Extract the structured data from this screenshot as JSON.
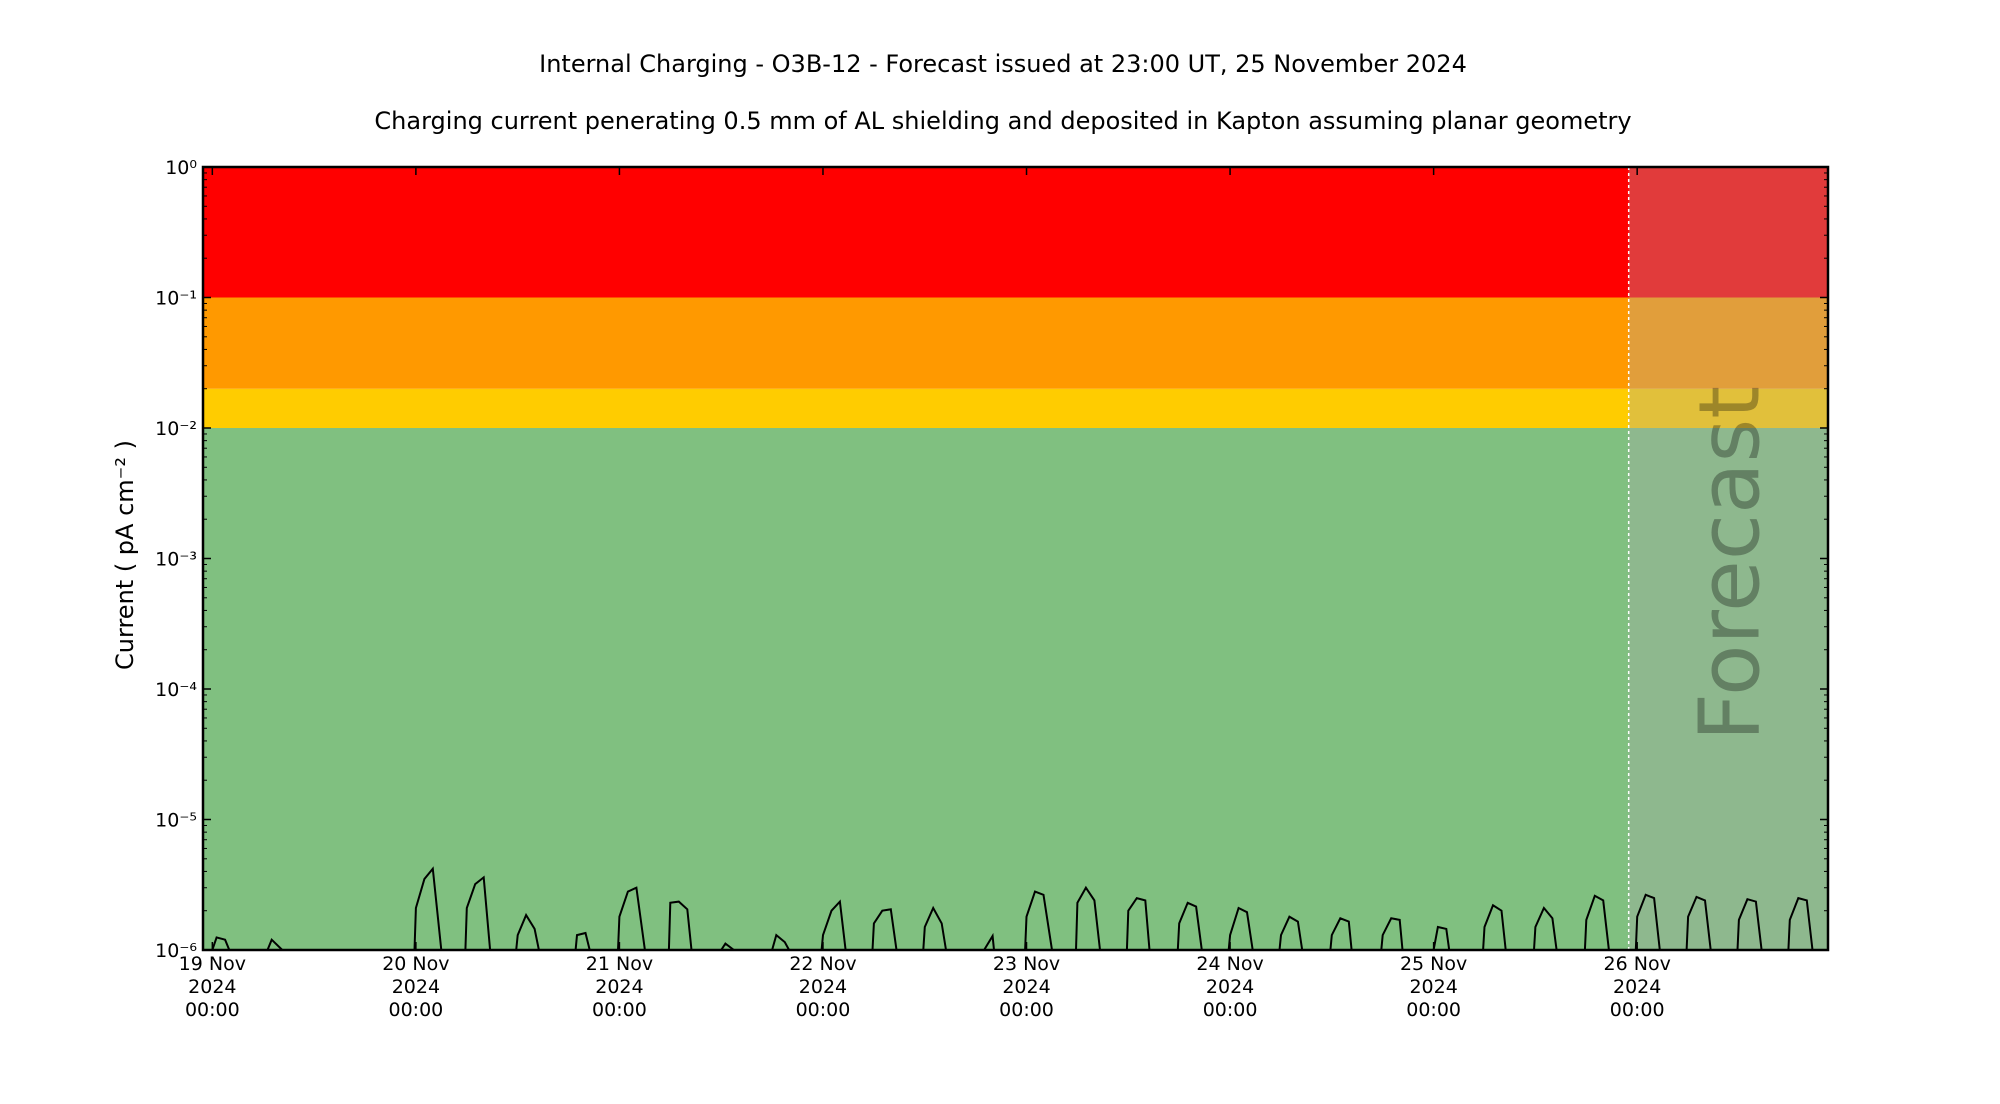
{
  "chart_data": {
    "type": "line",
    "title": "Internal Charging - O3B-12 - Forecast issued at 23:00 UT, 25 November 2024",
    "subtitle": "Charging current penerating 0.5 mm of AL shielding and deposited in Kapton assuming planar geometry",
    "xlabel": "",
    "ylabel": "Current ( pA cm⁻² )",
    "y_scale": "log",
    "ylim": [
      1e-06,
      1
    ],
    "xlim": [
      "2024-11-18T22:54",
      "2024-11-26T22:30"
    ],
    "grid": false,
    "y_ticks": [
      {
        "value": 1e-06,
        "label": "10⁻⁶"
      },
      {
        "value": 1e-05,
        "label": "10⁻⁵"
      },
      {
        "value": 0.0001,
        "label": "10⁻⁴"
      },
      {
        "value": 0.001,
        "label": "10⁻³"
      },
      {
        "value": 0.01,
        "label": "10⁻²"
      },
      {
        "value": 0.1,
        "label": "10⁻¹"
      },
      {
        "value": 1,
        "label": "10⁰"
      }
    ],
    "x_ticks": [
      {
        "time": "2024-11-19T00:00",
        "lines": [
          "19 Nov",
          "2024",
          "00:00"
        ]
      },
      {
        "time": "2024-11-20T00:00",
        "lines": [
          "20 Nov",
          "2024",
          "00:00"
        ]
      },
      {
        "time": "2024-11-21T00:00",
        "lines": [
          "21 Nov",
          "2024",
          "00:00"
        ]
      },
      {
        "time": "2024-11-22T00:00",
        "lines": [
          "22 Nov",
          "2024",
          "00:00"
        ]
      },
      {
        "time": "2024-11-23T00:00",
        "lines": [
          "23 Nov",
          "2024",
          "00:00"
        ]
      },
      {
        "time": "2024-11-24T00:00",
        "lines": [
          "24 Nov",
          "2024",
          "00:00"
        ]
      },
      {
        "time": "2024-11-25T00:00",
        "lines": [
          "25 Nov",
          "2024",
          "00:00"
        ]
      },
      {
        "time": "2024-11-26T00:00",
        "lines": [
          "26 Nov",
          "2024",
          "00:00"
        ]
      }
    ],
    "bands": [
      {
        "from": 1e-06,
        "to": 0.01,
        "color": "#80c080"
      },
      {
        "from": 0.01,
        "to": 0.02,
        "color": "#ffcc00"
      },
      {
        "from": 0.02,
        "to": 0.1,
        "color": "#ff9900"
      },
      {
        "from": 0.1,
        "to": 1,
        "color": "#ff0000"
      }
    ],
    "forecast_region": {
      "start": "2024-11-25T23:00",
      "end": "2024-11-26T22:30",
      "label": "Forecast",
      "overlay_color": "#aaaaaa",
      "overlay_opacity": 0.35
    },
    "series": [
      {
        "color": "#000000",
        "points": [
          [
            "2024-11-19T00:00",
            1e-06
          ],
          [
            "2024-11-19T00:30",
            1.25e-06
          ],
          [
            "2024-11-19T01:30",
            1.2e-06
          ],
          [
            "2024-11-19T02:00",
            1e-06
          ],
          [
            "2024-11-19T06:30",
            1e-06
          ],
          [
            "2024-11-19T07:00",
            1.2e-06
          ],
          [
            "2024-11-19T08:15",
            1e-06
          ],
          [
            "2024-11-19T23:50",
            1e-06
          ],
          [
            "2024-11-20T00:00",
            2.1e-06
          ],
          [
            "2024-11-20T01:00",
            3.5e-06
          ],
          [
            "2024-11-20T02:00",
            4.2e-06
          ],
          [
            "2024-11-20T03:00",
            1e-06
          ],
          [
            "2024-11-20T05:50",
            1e-06
          ],
          [
            "2024-11-20T06:00",
            2.1e-06
          ],
          [
            "2024-11-20T07:00",
            3.2e-06
          ],
          [
            "2024-11-20T08:00",
            3.6e-06
          ],
          [
            "2024-11-20T08:45",
            1e-06
          ],
          [
            "2024-11-20T11:50",
            1e-06
          ],
          [
            "2024-11-20T12:00",
            1.3e-06
          ],
          [
            "2024-11-20T13:00",
            1.85e-06
          ],
          [
            "2024-11-20T14:00",
            1.45e-06
          ],
          [
            "2024-11-20T14:30",
            1e-06
          ],
          [
            "2024-11-20T18:50",
            1e-06
          ],
          [
            "2024-11-20T19:00",
            1.3e-06
          ],
          [
            "2024-11-20T20:00",
            1.35e-06
          ],
          [
            "2024-11-20T20:30",
            1e-06
          ],
          [
            "2024-11-20T23:50",
            1e-06
          ],
          [
            "2024-11-21T00:00",
            1.8e-06
          ],
          [
            "2024-11-21T01:00",
            2.8e-06
          ],
          [
            "2024-11-21T02:00",
            3e-06
          ],
          [
            "2024-11-21T03:00",
            1e-06
          ],
          [
            "2024-11-21T05:50",
            1e-06
          ],
          [
            "2024-11-21T06:00",
            2.3e-06
          ],
          [
            "2024-11-21T07:00",
            2.35e-06
          ],
          [
            "2024-11-21T08:00",
            2.05e-06
          ],
          [
            "2024-11-21T08:30",
            1e-06
          ],
          [
            "2024-11-21T12:00",
            1e-06
          ],
          [
            "2024-11-21T12:30",
            1.12e-06
          ],
          [
            "2024-11-21T13:30",
            1e-06
          ],
          [
            "2024-11-21T18:00",
            1e-06
          ],
          [
            "2024-11-21T18:30",
            1.3e-06
          ],
          [
            "2024-11-21T19:30",
            1.15e-06
          ],
          [
            "2024-11-21T20:00",
            1e-06
          ],
          [
            "2024-11-21T23:50",
            1e-06
          ],
          [
            "2024-11-22T00:00",
            1.3e-06
          ],
          [
            "2024-11-22T01:00",
            2e-06
          ],
          [
            "2024-11-22T02:00",
            2.35e-06
          ],
          [
            "2024-11-22T02:40",
            1e-06
          ],
          [
            "2024-11-22T05:50",
            1e-06
          ],
          [
            "2024-11-22T06:00",
            1.6e-06
          ],
          [
            "2024-11-22T07:00",
            2e-06
          ],
          [
            "2024-11-22T08:00",
            2.05e-06
          ],
          [
            "2024-11-22T08:40",
            1e-06
          ],
          [
            "2024-11-22T11:50",
            1e-06
          ],
          [
            "2024-11-22T12:00",
            1.5e-06
          ],
          [
            "2024-11-22T13:00",
            2.1e-06
          ],
          [
            "2024-11-22T14:00",
            1.6e-06
          ],
          [
            "2024-11-22T14:30",
            1e-06
          ],
          [
            "2024-11-22T19:00",
            1e-06
          ],
          [
            "2024-11-22T20:00",
            1.28e-06
          ],
          [
            "2024-11-22T20:10",
            1e-06
          ],
          [
            "2024-11-22T23:50",
            1e-06
          ],
          [
            "2024-11-23T00:00",
            1.8e-06
          ],
          [
            "2024-11-23T01:00",
            2.8e-06
          ],
          [
            "2024-11-23T02:00",
            2.65e-06
          ],
          [
            "2024-11-23T03:00",
            1e-06
          ],
          [
            "2024-11-23T05:50",
            1e-06
          ],
          [
            "2024-11-23T06:00",
            2.3e-06
          ],
          [
            "2024-11-23T07:00",
            3e-06
          ],
          [
            "2024-11-23T08:00",
            2.4e-06
          ],
          [
            "2024-11-23T08:40",
            1e-06
          ],
          [
            "2024-11-23T11:50",
            1e-06
          ],
          [
            "2024-11-23T12:00",
            2e-06
          ],
          [
            "2024-11-23T13:00",
            2.5e-06
          ],
          [
            "2024-11-23T14:00",
            2.4e-06
          ],
          [
            "2024-11-23T14:30",
            1e-06
          ],
          [
            "2024-11-23T17:50",
            1e-06
          ],
          [
            "2024-11-23T18:00",
            1.6e-06
          ],
          [
            "2024-11-23T19:00",
            2.3e-06
          ],
          [
            "2024-11-23T20:00",
            2.15e-06
          ],
          [
            "2024-11-23T20:40",
            1e-06
          ],
          [
            "2024-11-23T23:50",
            1e-06
          ],
          [
            "2024-11-24T00:00",
            1.3e-06
          ],
          [
            "2024-11-24T01:00",
            2.1e-06
          ],
          [
            "2024-11-24T02:00",
            1.95e-06
          ],
          [
            "2024-11-24T02:40",
            1e-06
          ],
          [
            "2024-11-24T05:50",
            1e-06
          ],
          [
            "2024-11-24T06:00",
            1.3e-06
          ],
          [
            "2024-11-24T07:00",
            1.8e-06
          ],
          [
            "2024-11-24T08:00",
            1.65e-06
          ],
          [
            "2024-11-24T08:30",
            1e-06
          ],
          [
            "2024-11-24T11:50",
            1e-06
          ],
          [
            "2024-11-24T12:00",
            1.3e-06
          ],
          [
            "2024-11-24T13:00",
            1.75e-06
          ],
          [
            "2024-11-24T14:00",
            1.65e-06
          ],
          [
            "2024-11-24T14:20",
            1e-06
          ],
          [
            "2024-11-24T17:50",
            1e-06
          ],
          [
            "2024-11-24T18:00",
            1.3e-06
          ],
          [
            "2024-11-24T19:00",
            1.75e-06
          ],
          [
            "2024-11-24T20:00",
            1.7e-06
          ],
          [
            "2024-11-24T20:20",
            1e-06
          ],
          [
            "2024-11-25T00:00",
            1e-06
          ],
          [
            "2024-11-25T00:30",
            1.5e-06
          ],
          [
            "2024-11-25T01:30",
            1.45e-06
          ],
          [
            "2024-11-25T01:50",
            1e-06
          ],
          [
            "2024-11-25T05:50",
            1e-06
          ],
          [
            "2024-11-25T06:00",
            1.5e-06
          ],
          [
            "2024-11-25T07:00",
            2.2e-06
          ],
          [
            "2024-11-25T08:00",
            2e-06
          ],
          [
            "2024-11-25T08:30",
            1e-06
          ],
          [
            "2024-11-25T11:50",
            1e-06
          ],
          [
            "2024-11-25T12:00",
            1.5e-06
          ],
          [
            "2024-11-25T13:00",
            2.1e-06
          ],
          [
            "2024-11-25T14:00",
            1.75e-06
          ],
          [
            "2024-11-25T14:30",
            1e-06
          ],
          [
            "2024-11-25T17:50",
            1e-06
          ],
          [
            "2024-11-25T18:00",
            1.7e-06
          ],
          [
            "2024-11-25T19:00",
            2.6e-06
          ],
          [
            "2024-11-25T20:00",
            2.4e-06
          ],
          [
            "2024-11-25T20:40",
            1e-06
          ],
          [
            "2024-11-25T23:50",
            1e-06
          ],
          [
            "2024-11-26T00:00",
            1.8e-06
          ],
          [
            "2024-11-26T01:00",
            2.65e-06
          ],
          [
            "2024-11-26T02:00",
            2.5e-06
          ],
          [
            "2024-11-26T02:40",
            1e-06
          ],
          [
            "2024-11-26T05:50",
            1e-06
          ],
          [
            "2024-11-26T06:00",
            1.8e-06
          ],
          [
            "2024-11-26T07:00",
            2.55e-06
          ],
          [
            "2024-11-26T08:00",
            2.4e-06
          ],
          [
            "2024-11-26T08:40",
            1e-06
          ],
          [
            "2024-11-26T11:50",
            1e-06
          ],
          [
            "2024-11-26T12:00",
            1.7e-06
          ],
          [
            "2024-11-26T13:00",
            2.45e-06
          ],
          [
            "2024-11-26T14:00",
            2.35e-06
          ],
          [
            "2024-11-26T14:40",
            1e-06
          ],
          [
            "2024-11-26T17:50",
            1e-06
          ],
          [
            "2024-11-26T18:00",
            1.7e-06
          ],
          [
            "2024-11-26T19:00",
            2.5e-06
          ],
          [
            "2024-11-26T20:00",
            2.4e-06
          ],
          [
            "2024-11-26T20:40",
            1e-06
          ]
        ]
      }
    ]
  }
}
